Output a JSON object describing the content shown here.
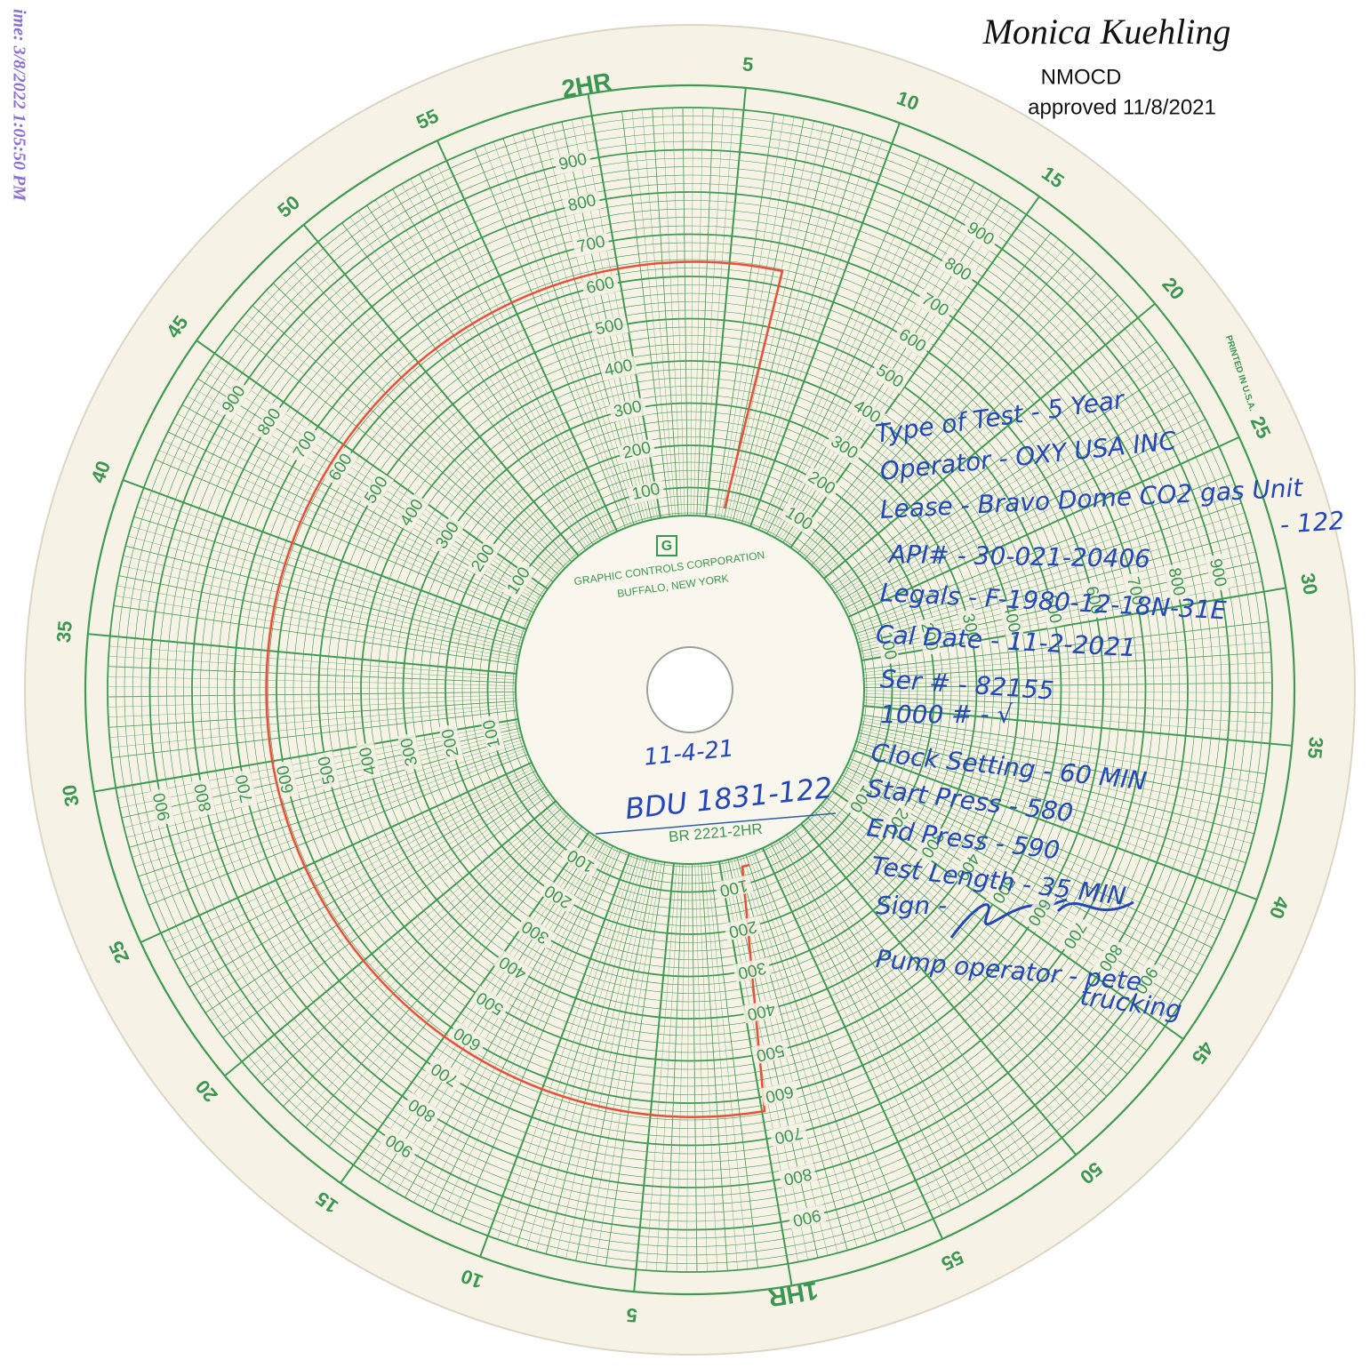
{
  "side_stamp": "ime: 3/8/2022 1:05:50 PM",
  "approval": {
    "signature": "Monica Kuehling",
    "agency": "NMOCD",
    "approved": "approved 11/8/2021"
  },
  "chart_paper": {
    "minute_labels": [
      "2HR",
      "5",
      "10",
      "15",
      "20",
      "25",
      "30",
      "35",
      "40",
      "45",
      "50",
      "55",
      "1HR",
      "5",
      "10",
      "15",
      "20",
      "25",
      "30",
      "35",
      "40",
      "45",
      "50",
      "55"
    ],
    "pressure_labels": [
      "100",
      "200",
      "300",
      "400",
      "500",
      "600",
      "700",
      "800",
      "900"
    ],
    "maker": "GRAPHIC CONTROLS CORPORATION",
    "city": "BUFFALO, NEW YORK",
    "chart_number": "BR 2221-2HR",
    "printed": "PRINTED IN U.S.A.",
    "logo": "G"
  },
  "handwriting": {
    "date": "11-4-21",
    "well": "BDU 1831-122",
    "notes": [
      "Type of Test - 5 Year",
      "Operator - OXY USA INC",
      "Lease - Bravo Dome CO2 gas Unit",
      "- 122",
      "API# - 30-021-20406",
      "Legals - F-1980-12-18N-31E",
      "Cal Date - 11-2-2021",
      "Ser # - 82155",
      "1000 # - √",
      "Clock Setting - 60 MIN",
      "Start Press - 580",
      "End Press - 590",
      "Test Length - 35 MIN",
      "Sign -",
      "Pump operator - pete",
      "trucking"
    ]
  }
}
